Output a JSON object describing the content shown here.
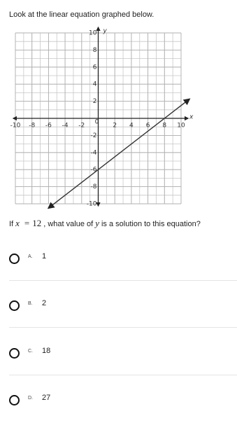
{
  "instruction": "Look at the linear equation graphed below.",
  "chart_data": {
    "type": "line",
    "xlabel": "x",
    "ylabel": "y",
    "x": [
      -6,
      11
    ],
    "series": [
      {
        "color": "#333333",
        "values": [
          -10.5,
          2.25
        ]
      }
    ],
    "xlim": [
      -10,
      10
    ],
    "ylim": [
      -10,
      10
    ],
    "xticks": [
      -10,
      -8,
      -6,
      -4,
      -2,
      0,
      2,
      4,
      6,
      8,
      10
    ],
    "yticks": [
      -10,
      -8,
      -6,
      -4,
      -2,
      2,
      4,
      6,
      8,
      10
    ],
    "grid": true
  },
  "question": {
    "parts": [
      "If",
      "x",
      "=",
      "12",
      ", what value of",
      "y",
      "is a solution to this equation?"
    ]
  },
  "options": [
    {
      "letter": "A.",
      "text": "1"
    },
    {
      "letter": "B.",
      "text": "2"
    },
    {
      "letter": "C.",
      "text": "18"
    },
    {
      "letter": "D.",
      "text": "27"
    }
  ]
}
